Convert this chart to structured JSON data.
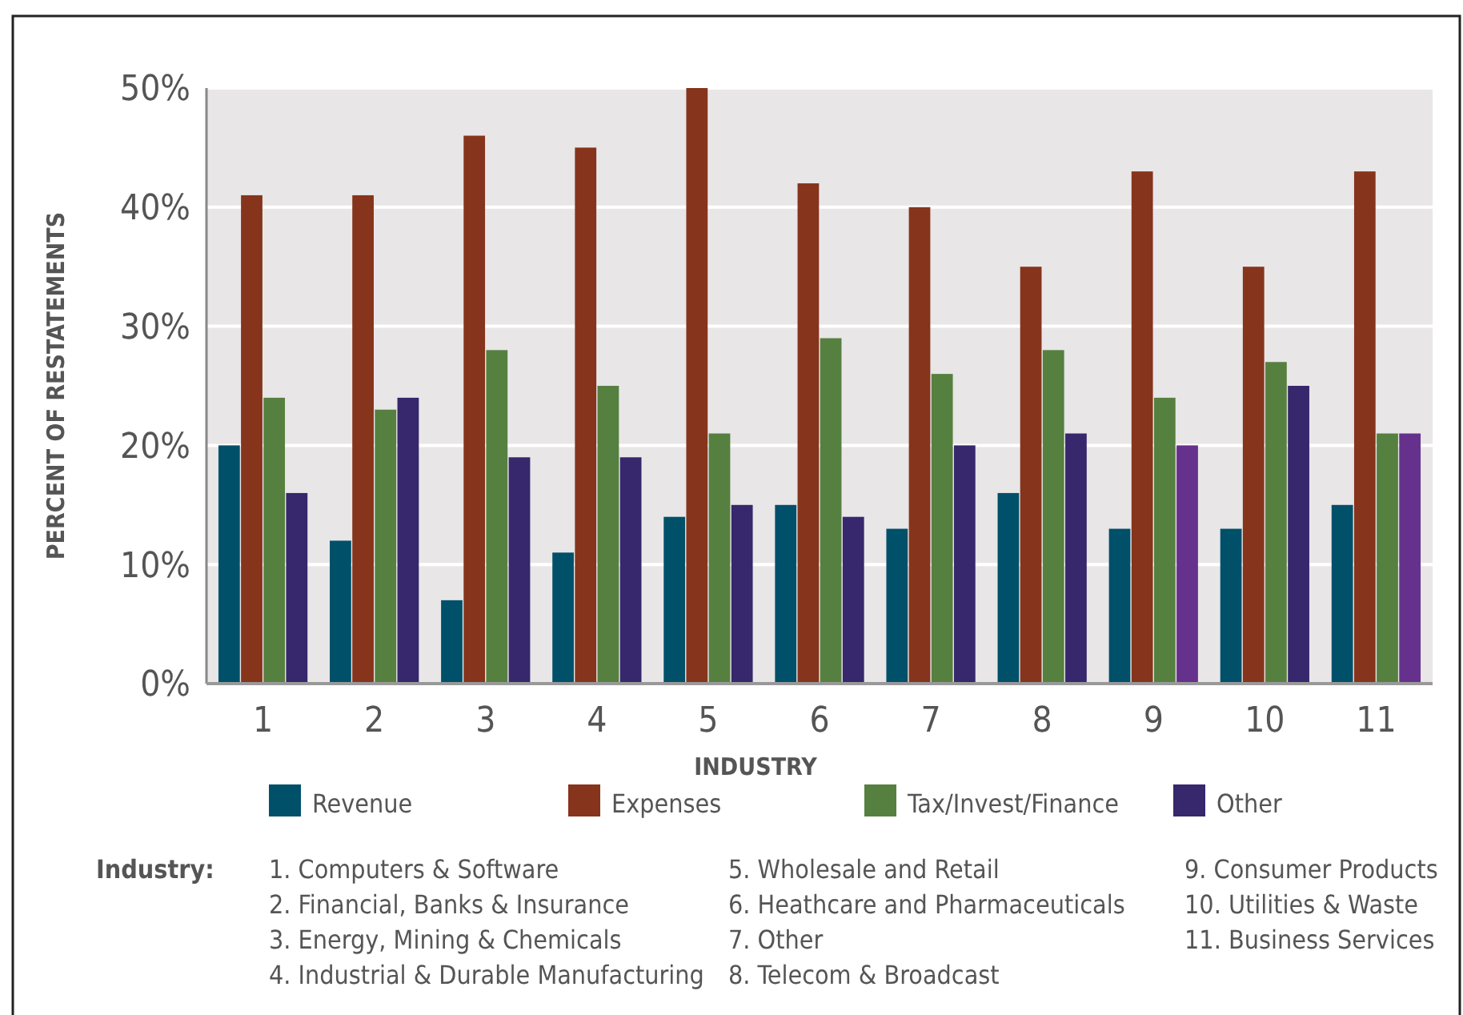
{
  "chart_data": {
    "type": "bar",
    "xlabel": "INDUSTRY",
    "ylabel": "PERCENT OF RESTATEMENTS",
    "categories": [
      "1",
      "2",
      "3",
      "4",
      "5",
      "6",
      "7",
      "8",
      "9",
      "10",
      "11"
    ],
    "series": [
      {
        "name": "Revenue",
        "color": "#00506a",
        "values": [
          20,
          12,
          7,
          11,
          14,
          15,
          13,
          16,
          13,
          13,
          15
        ]
      },
      {
        "name": "Expenses",
        "color": "#86341c",
        "values": [
          41,
          41,
          46,
          45,
          50,
          42,
          40,
          35,
          43,
          35,
          43
        ]
      },
      {
        "name": "Tax/Invest/Finance",
        "color": "#568040",
        "values": [
          24,
          23,
          28,
          25,
          21,
          29,
          26,
          28,
          24,
          27,
          21
        ]
      },
      {
        "name": "Other",
        "color": "#37276c",
        "colors": [
          "#37276c",
          "#37276c",
          "#37276c",
          "#37276c",
          "#37276c",
          "#37276c",
          "#37276c",
          "#37276c",
          "#66318c",
          "#37276c",
          "#66318c"
        ],
        "values": [
          16,
          24,
          19,
          19,
          15,
          14,
          20,
          21,
          20,
          25,
          21
        ]
      }
    ],
    "ylim": [
      0,
      50
    ],
    "yticks": [
      {
        "value": 0,
        "label": "0%"
      },
      {
        "value": 10,
        "label": "10%"
      },
      {
        "value": 20,
        "label": "20%"
      },
      {
        "value": 30,
        "label": "30%"
      },
      {
        "value": 40,
        "label": "40%"
      },
      {
        "value": 50,
        "label": "50%"
      }
    ],
    "grid": "y",
    "legend": "bottom",
    "annotations": [
      "Industry:",
      "1. Computers & Software",
      "2. Financial, Banks & Insurance",
      "3. Energy, Mining & Chemicals",
      "4. Industrial & Durable Manufacturing",
      "5. Wholesale and Retail",
      "6. Heathcare and Pharmaceuticals",
      "7. Other",
      "8. Telecom & Broadcast",
      "9. Consumer Products",
      "10. Utilities & Waste",
      "11. Business Services"
    ]
  }
}
